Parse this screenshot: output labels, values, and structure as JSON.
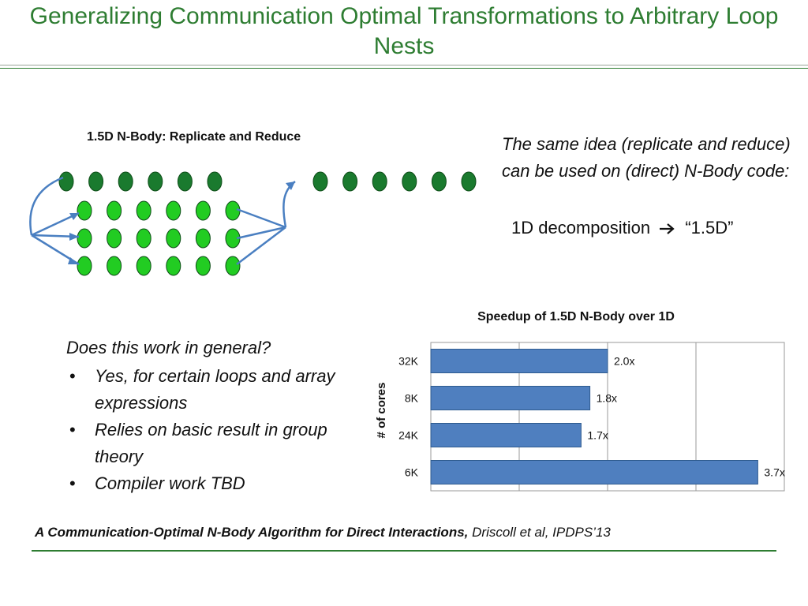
{
  "slide": {
    "title": "Generalizing Communication Optimal Transformations to Arbitrary Loop Nests"
  },
  "diagram": {
    "title": "1.5D N-Body: Replicate and Reduce",
    "colors": {
      "dark": "#1a7a2e",
      "light": "#22cc22"
    },
    "top_left_dots": 6,
    "grid_rows": 3,
    "grid_cols": 6,
    "top_right_dots": 6
  },
  "description": {
    "text": "The same idea (replicate and reduce) can be used on (direct) N-Body code:",
    "decomposition_prefix": "1D decomposition",
    "arrow_icon": "right-arrow-icon",
    "decomposition_suffix": "“1.5D”"
  },
  "general": {
    "question": "Does this work in general?",
    "bullets": [
      "Yes, for certain loops and array expressions",
      "Relies on basic result in group theory",
      "Compiler work TBD"
    ]
  },
  "chart_data": {
    "type": "bar",
    "orientation": "horizontal",
    "title": "Speedup of 1.5D N-Body over 1D",
    "ylabel": "# of cores",
    "xlabel": "",
    "categories": [
      "32K",
      "8K",
      "24K",
      "6K"
    ],
    "values": [
      2.0,
      1.8,
      1.7,
      3.7
    ],
    "data_labels": [
      "2.0x",
      "1.8x",
      "1.7x",
      "3.7x"
    ],
    "xlim": [
      0,
      4
    ],
    "grid": true,
    "bar_color": "#4f7fbf"
  },
  "citation": {
    "title": "A Communication-Optimal N-Body Algorithm for Direct Interactions,",
    "rest": "Driscoll et al, IPDPS’13"
  },
  "colors": {
    "title": "#2e7d32"
  }
}
